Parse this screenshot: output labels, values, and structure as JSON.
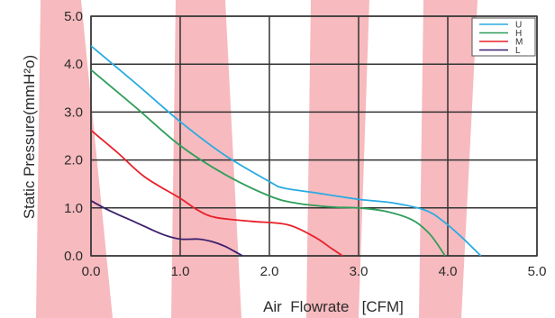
{
  "chart_data": {
    "type": "line",
    "title": "",
    "xlabel": "Air  Flowrate   [CFM]",
    "ylabel": "Static Pressure(mmH²o)",
    "xlim": [
      0,
      5
    ],
    "ylim": [
      0,
      5
    ],
    "x_ticks": [
      "0.0",
      "1.0",
      "2.0",
      "3.0",
      "4.0",
      "5.0"
    ],
    "y_ticks": [
      "0.0",
      "1.0",
      "2.0",
      "3.0",
      "4.0",
      "5.0"
    ],
    "grid": true,
    "legend_position": "top-right",
    "series": [
      {
        "name": "U",
        "color": "#29abe2",
        "x": [
          0.0,
          0.5,
          1.0,
          1.5,
          2.0,
          2.15,
          2.5,
          3.0,
          3.4,
          3.75,
          3.95,
          4.15,
          4.37
        ],
        "y": [
          4.38,
          3.6,
          2.8,
          2.1,
          1.55,
          1.42,
          1.32,
          1.18,
          1.1,
          0.95,
          0.72,
          0.4,
          0.0
        ]
      },
      {
        "name": "H",
        "color": "#2e9e5b",
        "x": [
          0.0,
          0.5,
          1.0,
          1.5,
          2.0,
          2.3,
          2.7,
          3.0,
          3.3,
          3.6,
          3.8,
          3.97
        ],
        "y": [
          3.88,
          3.1,
          2.3,
          1.7,
          1.25,
          1.1,
          1.02,
          1.0,
          0.93,
          0.75,
          0.45,
          0.0
        ]
      },
      {
        "name": "M",
        "color": "#e8202a",
        "x": [
          0.0,
          0.3,
          0.6,
          1.0,
          1.2,
          1.4,
          1.8,
          2.2,
          2.5,
          2.7,
          2.82
        ],
        "y": [
          2.62,
          2.15,
          1.65,
          1.2,
          0.95,
          0.8,
          0.72,
          0.65,
          0.4,
          0.15,
          0.0
        ]
      },
      {
        "name": "L",
        "color": "#3b1f6e",
        "x": [
          0.0,
          0.2,
          0.5,
          0.8,
          1.0,
          1.2,
          1.35,
          1.5,
          1.65,
          1.7
        ],
        "y": [
          1.15,
          0.95,
          0.7,
          0.45,
          0.35,
          0.35,
          0.3,
          0.2,
          0.05,
          0.0
        ]
      }
    ]
  }
}
